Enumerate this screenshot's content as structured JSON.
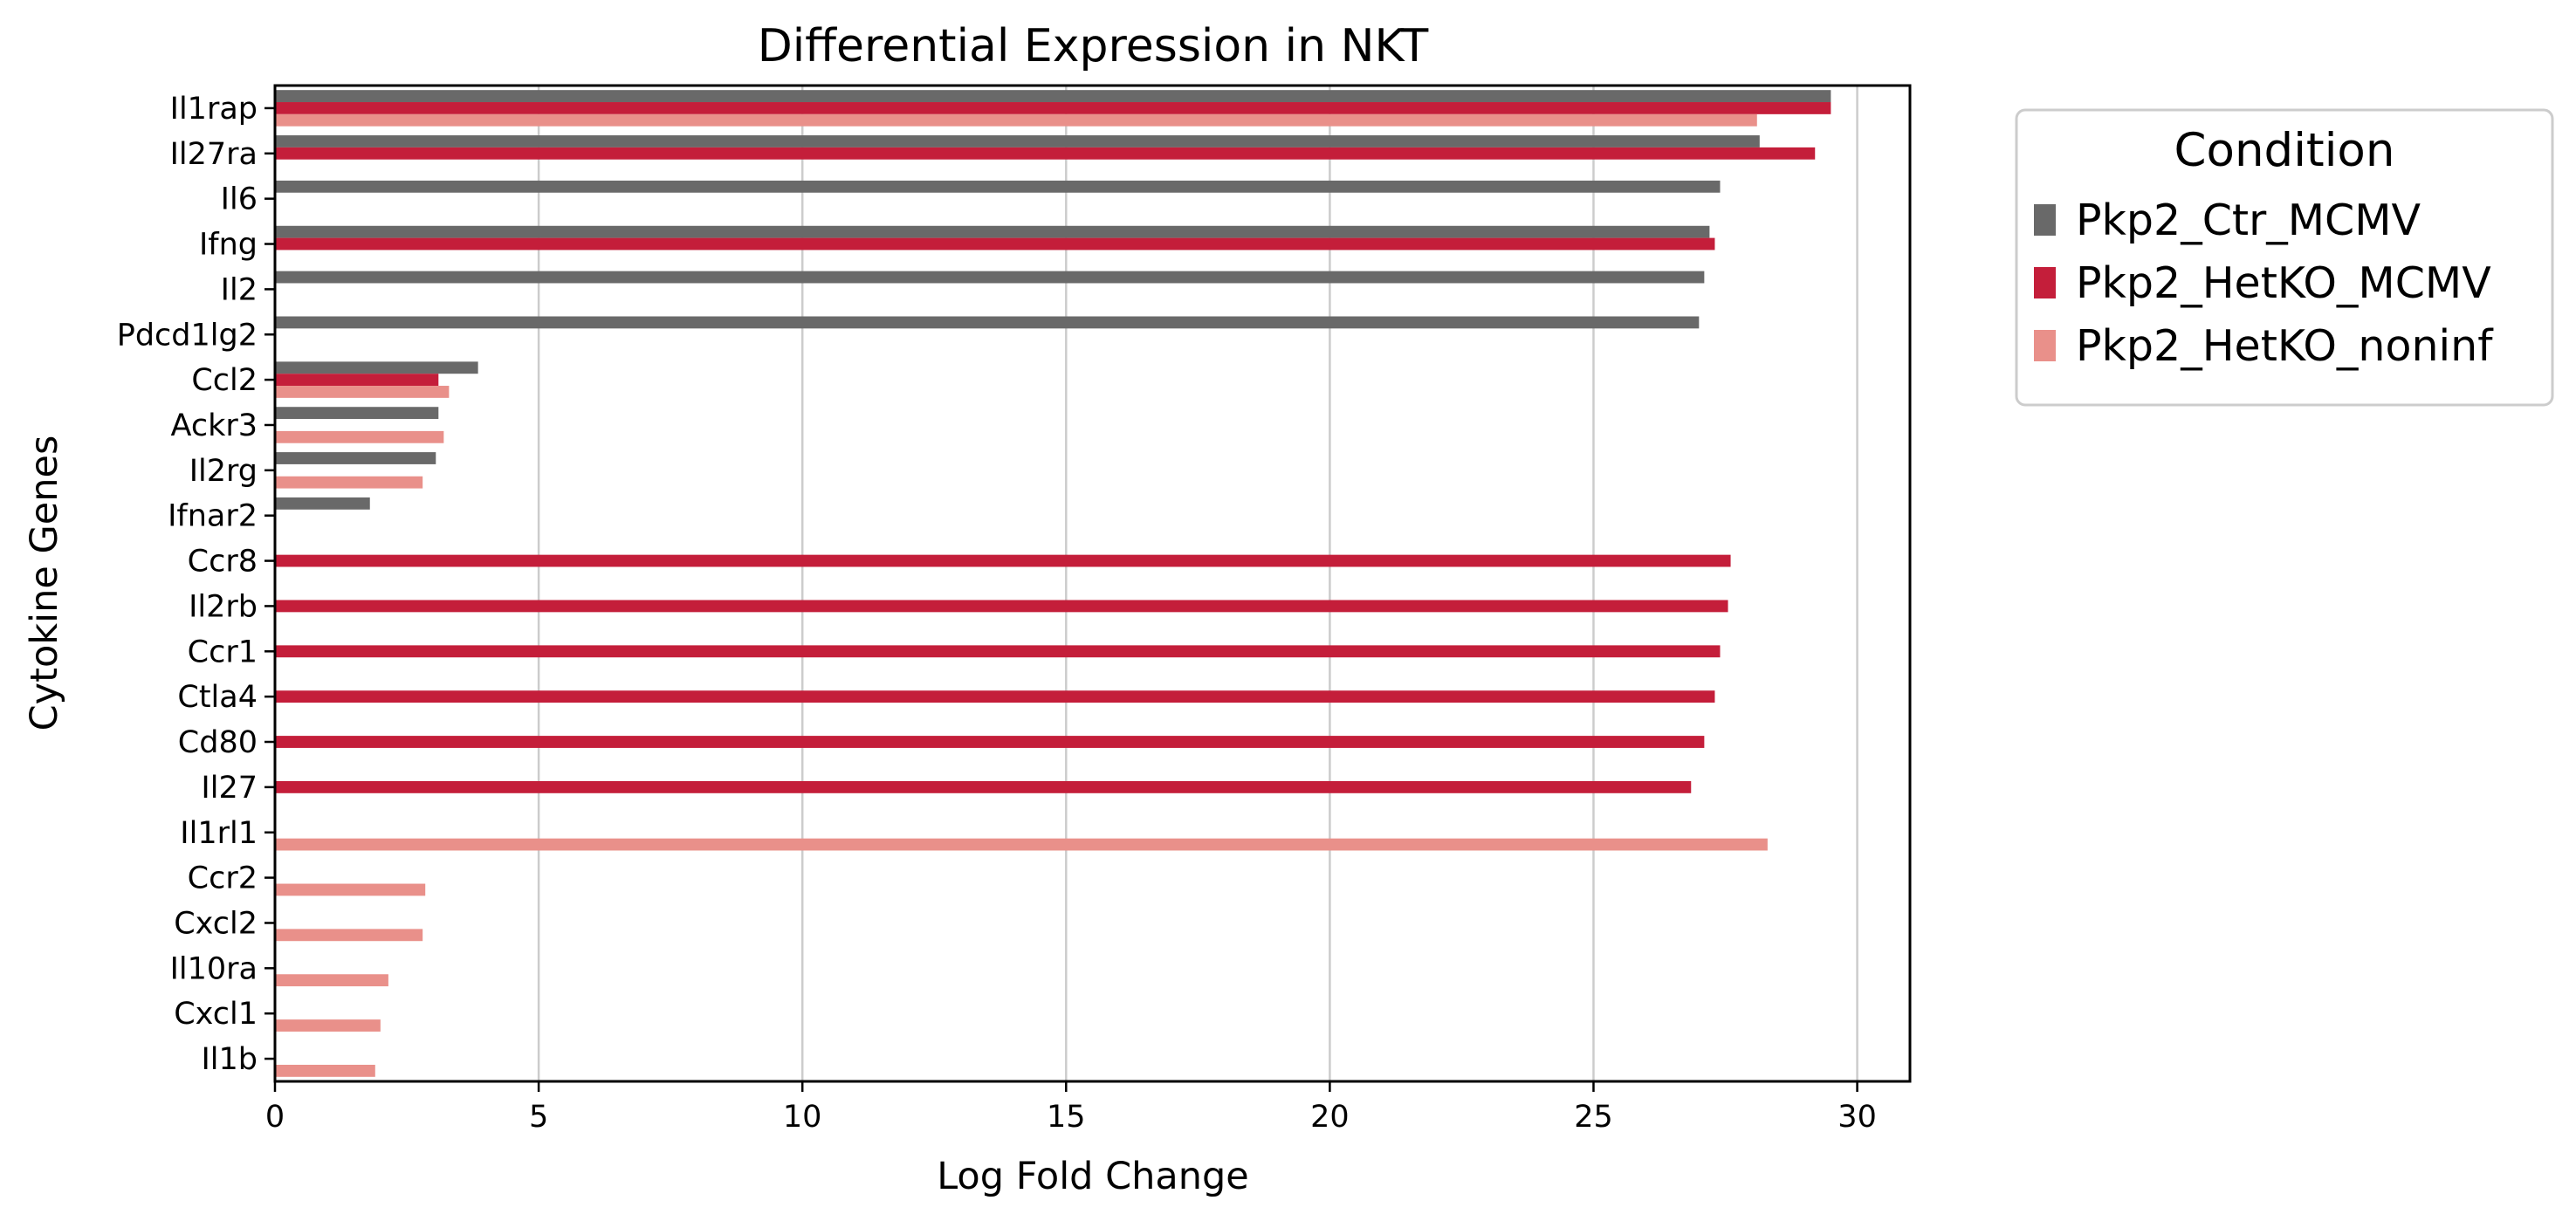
{
  "chart_data": {
    "type": "bar",
    "orientation": "horizontal",
    "title": "Differential Expression in NKT",
    "xlabel": "Log Fold Change",
    "ylabel": "Cytokine Genes",
    "xlim": [
      0,
      31
    ],
    "xticks": [
      0,
      5,
      10,
      15,
      20,
      25,
      30
    ],
    "grid": "vertical lines at x ticks",
    "legend_title": "Condition",
    "legend_position": "outside right, top",
    "categories": [
      "Il1rap",
      "Il27ra",
      "Il6",
      "Ifng",
      "Il2",
      "Pdcd1lg2",
      "Ccl2",
      "Ackr3",
      "Il2rg",
      "Ifnar2",
      "Ccr8",
      "Il2rb",
      "Ccr1",
      "Ctla4",
      "Cd80",
      "Il27",
      "Il1rl1",
      "Ccr2",
      "Cxcl2",
      "Il10ra",
      "Cxcl1",
      "Il1b"
    ],
    "series": [
      {
        "name": "Pkp2_Ctr_MCMV",
        "color": "#696969",
        "values": [
          29.5,
          28.15,
          27.4,
          27.2,
          27.1,
          27.0,
          3.85,
          3.1,
          3.05,
          1.8,
          null,
          null,
          null,
          null,
          null,
          null,
          null,
          null,
          null,
          null,
          null,
          null
        ]
      },
      {
        "name": "Pkp2_HetKO_MCMV",
        "color": "#c41e3a",
        "values": [
          29.5,
          29.2,
          null,
          27.3,
          null,
          null,
          3.1,
          null,
          null,
          null,
          27.6,
          27.55,
          27.4,
          27.3,
          27.1,
          26.85,
          null,
          null,
          null,
          null,
          null,
          null
        ]
      },
      {
        "name": "Pkp2_HetKO_noninf",
        "color": "#e9908a",
        "values": [
          28.1,
          null,
          null,
          null,
          null,
          null,
          3.3,
          3.2,
          2.8,
          null,
          null,
          null,
          null,
          null,
          null,
          null,
          28.3,
          2.85,
          2.8,
          2.15,
          2.0,
          1.9
        ]
      }
    ]
  }
}
